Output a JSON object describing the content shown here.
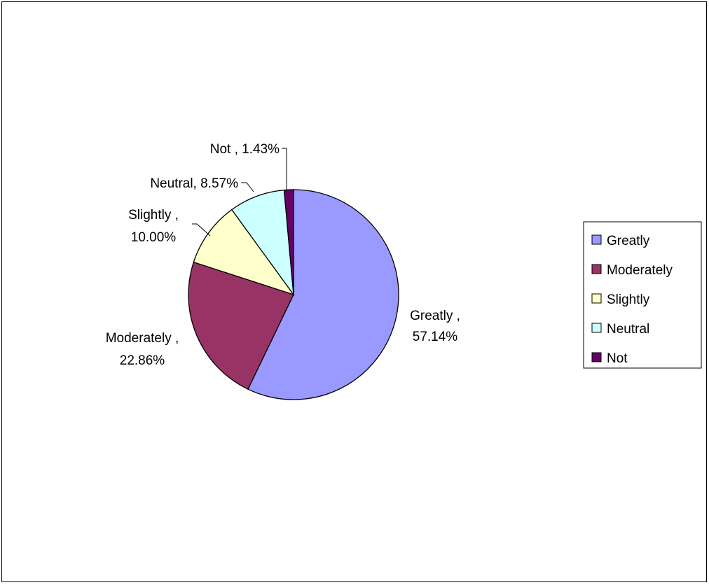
{
  "chart_data": {
    "type": "pie",
    "title": "",
    "legend_position": "right",
    "slices": [
      {
        "name": "Greatly",
        "value": 57.14,
        "label_line1": "Greatly ,",
        "label_line2": "57.14%",
        "color": "#9999FF"
      },
      {
        "name": "Moderately",
        "value": 22.86,
        "label_line1": "Moderately ,",
        "label_line2": "22.86%",
        "color": "#993366"
      },
      {
        "name": "Slightly",
        "value": 10.0,
        "label_line1": "Slightly ,",
        "label_line2": "10.00%",
        "color": "#FFFFCC"
      },
      {
        "name": "Neutral",
        "value": 8.57,
        "label_line1": "Neutral, 8.57%",
        "label_line2": "",
        "color": "#CCFFFF"
      },
      {
        "name": "Not",
        "value": 1.43,
        "label_line1": "Not , 1.43%",
        "label_line2": "",
        "color": "#660066"
      }
    ],
    "legend": [
      "Greatly",
      "Moderately",
      "Slightly",
      "Neutral",
      "Not"
    ]
  }
}
